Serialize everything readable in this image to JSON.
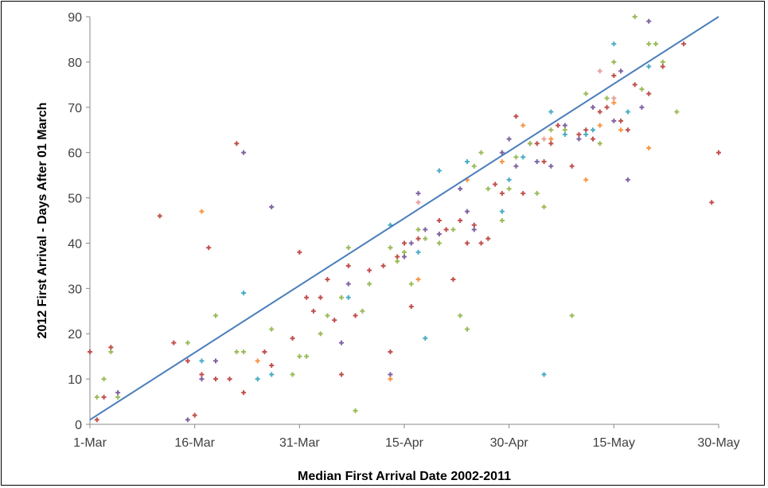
{
  "chart_data": {
    "type": "scatter",
    "title": "",
    "xlabel": "Median First Arrival Date 2002-2011",
    "ylabel": "2012 First Arrival - Days After 01 March",
    "xlim": [
      "2012-03-01",
      "2012-05-30"
    ],
    "ylim": [
      0,
      90
    ],
    "x_ticks": [
      "1-Mar",
      "16-Mar",
      "31-Mar",
      "15-Apr",
      "30-Apr",
      "15-May",
      "30-May"
    ],
    "y_ticks": [
      "0",
      "10",
      "20",
      "30",
      "40",
      "50",
      "60",
      "70",
      "80",
      "90"
    ],
    "grid": false,
    "legend": "none",
    "trendline": {
      "color": "#4a7ebb",
      "from": [
        "2012-03-01",
        1
      ],
      "to": [
        "2012-05-30",
        90
      ]
    },
    "marker_colors": {
      "red": "#c0504d",
      "green": "#9bbb59",
      "purple": "#8064a2",
      "cyan": "#4bacc6",
      "orange": "#f79646",
      "pink": "#e6a0a0"
    },
    "points": [
      [
        "2012-03-01",
        16,
        "red"
      ],
      [
        "2012-03-02",
        1,
        "red"
      ],
      [
        "2012-03-02",
        6,
        "green"
      ],
      [
        "2012-03-03",
        6,
        "red"
      ],
      [
        "2012-03-03",
        10,
        "green"
      ],
      [
        "2012-03-04",
        17,
        "red"
      ],
      [
        "2012-03-04",
        16,
        "green"
      ],
      [
        "2012-03-05",
        7,
        "purple"
      ],
      [
        "2012-03-05",
        6,
        "green"
      ],
      [
        "2012-03-11",
        46,
        "red"
      ],
      [
        "2012-03-13",
        18,
        "red"
      ],
      [
        "2012-03-15",
        18,
        "green"
      ],
      [
        "2012-03-15",
        14,
        "red"
      ],
      [
        "2012-03-15",
        1,
        "purple"
      ],
      [
        "2012-03-16",
        2,
        "red"
      ],
      [
        "2012-03-17",
        14,
        "cyan"
      ],
      [
        "2012-03-17",
        47,
        "orange"
      ],
      [
        "2012-03-17",
        11,
        "red"
      ],
      [
        "2012-03-17",
        10,
        "purple"
      ],
      [
        "2012-03-18",
        39,
        "red"
      ],
      [
        "2012-03-19",
        24,
        "green"
      ],
      [
        "2012-03-19",
        14,
        "purple"
      ],
      [
        "2012-03-19",
        10,
        "red"
      ],
      [
        "2012-03-21",
        10,
        "red"
      ],
      [
        "2012-03-22",
        62,
        "red"
      ],
      [
        "2012-03-22",
        16,
        "green"
      ],
      [
        "2012-03-23",
        60,
        "purple"
      ],
      [
        "2012-03-23",
        29,
        "cyan"
      ],
      [
        "2012-03-23",
        16,
        "green"
      ],
      [
        "2012-03-23",
        7,
        "red"
      ],
      [
        "2012-03-25",
        14,
        "orange"
      ],
      [
        "2012-03-25",
        10,
        "cyan"
      ],
      [
        "2012-03-26",
        16,
        "red"
      ],
      [
        "2012-03-27",
        48,
        "purple"
      ],
      [
        "2012-03-27",
        21,
        "green"
      ],
      [
        "2012-03-27",
        13,
        "red"
      ],
      [
        "2012-03-27",
        11,
        "cyan"
      ],
      [
        "2012-03-30",
        19,
        "red"
      ],
      [
        "2012-03-30",
        11,
        "green"
      ],
      [
        "2012-03-31",
        38,
        "red"
      ],
      [
        "2012-03-31",
        15,
        "green"
      ],
      [
        "2012-04-01",
        28,
        "red"
      ],
      [
        "2012-04-01",
        15,
        "green"
      ],
      [
        "2012-04-02",
        25,
        "red"
      ],
      [
        "2012-04-03",
        28,
        "red"
      ],
      [
        "2012-04-03",
        20,
        "green"
      ],
      [
        "2012-04-04",
        32,
        "red"
      ],
      [
        "2012-04-04",
        24,
        "green"
      ],
      [
        "2012-04-05",
        23,
        "red"
      ],
      [
        "2012-04-06",
        28,
        "green"
      ],
      [
        "2012-04-06",
        18,
        "purple"
      ],
      [
        "2012-04-06",
        11,
        "red"
      ],
      [
        "2012-04-07",
        39,
        "green"
      ],
      [
        "2012-04-07",
        35,
        "red"
      ],
      [
        "2012-04-07",
        31,
        "purple"
      ],
      [
        "2012-04-07",
        28,
        "cyan"
      ],
      [
        "2012-04-08",
        24,
        "red"
      ],
      [
        "2012-04-08",
        3,
        "green"
      ],
      [
        "2012-04-09",
        25,
        "green"
      ],
      [
        "2012-04-10",
        34,
        "red"
      ],
      [
        "2012-04-10",
        31,
        "green"
      ],
      [
        "2012-04-12",
        35,
        "red"
      ],
      [
        "2012-04-13",
        44,
        "cyan"
      ],
      [
        "2012-04-13",
        39,
        "green"
      ],
      [
        "2012-04-13",
        16,
        "red"
      ],
      [
        "2012-04-13",
        11,
        "purple"
      ],
      [
        "2012-04-13",
        10,
        "orange"
      ],
      [
        "2012-04-14",
        37,
        "red"
      ],
      [
        "2012-04-14",
        36,
        "green"
      ],
      [
        "2012-04-15",
        40,
        "red"
      ],
      [
        "2012-04-15",
        37,
        "purple"
      ],
      [
        "2012-04-15",
        38,
        "green"
      ],
      [
        "2012-04-16",
        40,
        "purple"
      ],
      [
        "2012-04-16",
        31,
        "green"
      ],
      [
        "2012-04-16",
        26,
        "red"
      ],
      [
        "2012-04-17",
        51,
        "purple"
      ],
      [
        "2012-04-17",
        49,
        "pink"
      ],
      [
        "2012-04-17",
        43,
        "green"
      ],
      [
        "2012-04-17",
        41,
        "red"
      ],
      [
        "2012-04-17",
        38,
        "cyan"
      ],
      [
        "2012-04-17",
        32,
        "orange"
      ],
      [
        "2012-04-18",
        43,
        "purple"
      ],
      [
        "2012-04-18",
        41,
        "green"
      ],
      [
        "2012-04-18",
        19,
        "cyan"
      ],
      [
        "2012-04-20",
        56,
        "cyan"
      ],
      [
        "2012-04-20",
        45,
        "red"
      ],
      [
        "2012-04-20",
        42,
        "purple"
      ],
      [
        "2012-04-20",
        40,
        "green"
      ],
      [
        "2012-04-21",
        43,
        "red"
      ],
      [
        "2012-04-22",
        43,
        "green"
      ],
      [
        "2012-04-22",
        32,
        "red"
      ],
      [
        "2012-04-23",
        52,
        "purple"
      ],
      [
        "2012-04-23",
        45,
        "red"
      ],
      [
        "2012-04-23",
        24,
        "green"
      ],
      [
        "2012-04-24",
        58,
        "cyan"
      ],
      [
        "2012-04-24",
        54,
        "orange"
      ],
      [
        "2012-04-24",
        47,
        "purple"
      ],
      [
        "2012-04-24",
        40,
        "red"
      ],
      [
        "2012-04-24",
        21,
        "green"
      ],
      [
        "2012-04-25",
        57,
        "green"
      ],
      [
        "2012-04-25",
        44,
        "red"
      ],
      [
        "2012-04-25",
        43,
        "purple"
      ],
      [
        "2012-04-26",
        60,
        "green"
      ],
      [
        "2012-04-26",
        40,
        "red"
      ],
      [
        "2012-04-27",
        52,
        "green"
      ],
      [
        "2012-04-27",
        41,
        "red"
      ],
      [
        "2012-04-28",
        53,
        "red"
      ],
      [
        "2012-04-29",
        60,
        "purple"
      ],
      [
        "2012-04-29",
        58,
        "orange"
      ],
      [
        "2012-04-29",
        51,
        "red"
      ],
      [
        "2012-04-29",
        47,
        "cyan"
      ],
      [
        "2012-04-29",
        45,
        "green"
      ],
      [
        "2012-04-30",
        63,
        "purple"
      ],
      [
        "2012-04-30",
        54,
        "cyan"
      ],
      [
        "2012-04-30",
        52,
        "green"
      ],
      [
        "2012-05-01",
        68,
        "red"
      ],
      [
        "2012-05-01",
        59,
        "green"
      ],
      [
        "2012-05-01",
        57,
        "purple"
      ],
      [
        "2012-05-02",
        66,
        "orange"
      ],
      [
        "2012-05-02",
        59,
        "cyan"
      ],
      [
        "2012-05-02",
        51,
        "red"
      ],
      [
        "2012-05-03",
        62,
        "red"
      ],
      [
        "2012-05-03",
        62,
        "green"
      ],
      [
        "2012-05-04",
        62,
        "red"
      ],
      [
        "2012-05-04",
        58,
        "purple"
      ],
      [
        "2012-05-04",
        51,
        "green"
      ],
      [
        "2012-05-05",
        63,
        "pink"
      ],
      [
        "2012-05-05",
        58,
        "red"
      ],
      [
        "2012-05-05",
        48,
        "green"
      ],
      [
        "2012-05-05",
        11,
        "cyan"
      ],
      [
        "2012-05-06",
        69,
        "cyan"
      ],
      [
        "2012-05-06",
        65,
        "green"
      ],
      [
        "2012-05-06",
        63,
        "orange"
      ],
      [
        "2012-05-06",
        62,
        "red"
      ],
      [
        "2012-05-06",
        57,
        "purple"
      ],
      [
        "2012-05-07",
        66,
        "red"
      ],
      [
        "2012-05-08",
        66,
        "purple"
      ],
      [
        "2012-05-08",
        65,
        "green"
      ],
      [
        "2012-05-08",
        64,
        "cyan"
      ],
      [
        "2012-05-09",
        57,
        "red"
      ],
      [
        "2012-05-09",
        24,
        "green"
      ],
      [
        "2012-05-10",
        64,
        "red"
      ],
      [
        "2012-05-10",
        63,
        "purple"
      ],
      [
        "2012-05-11",
        73,
        "green"
      ],
      [
        "2012-05-11",
        65,
        "red"
      ],
      [
        "2012-05-11",
        64,
        "cyan"
      ],
      [
        "2012-05-11",
        54,
        "orange"
      ],
      [
        "2012-05-12",
        70,
        "purple"
      ],
      [
        "2012-05-12",
        65,
        "cyan"
      ],
      [
        "2012-05-12",
        63,
        "red"
      ],
      [
        "2012-05-13",
        78,
        "pink"
      ],
      [
        "2012-05-13",
        69,
        "red"
      ],
      [
        "2012-05-13",
        66,
        "orange"
      ],
      [
        "2012-05-13",
        62,
        "green"
      ],
      [
        "2012-05-14",
        72,
        "green"
      ],
      [
        "2012-05-14",
        70,
        "red"
      ],
      [
        "2012-05-15",
        84,
        "cyan"
      ],
      [
        "2012-05-15",
        80,
        "green"
      ],
      [
        "2012-05-15",
        77,
        "red"
      ],
      [
        "2012-05-15",
        72,
        "pink"
      ],
      [
        "2012-05-15",
        71,
        "orange"
      ],
      [
        "2012-05-15",
        67,
        "purple"
      ],
      [
        "2012-05-16",
        78,
        "purple"
      ],
      [
        "2012-05-16",
        67,
        "red"
      ],
      [
        "2012-05-16",
        65,
        "orange"
      ],
      [
        "2012-05-17",
        69,
        "cyan"
      ],
      [
        "2012-05-17",
        65,
        "red"
      ],
      [
        "2012-05-17",
        54,
        "purple"
      ],
      [
        "2012-05-18",
        90,
        "green"
      ],
      [
        "2012-05-18",
        75,
        "red"
      ],
      [
        "2012-05-19",
        74,
        "green"
      ],
      [
        "2012-05-19",
        70,
        "purple"
      ],
      [
        "2012-05-20",
        89,
        "purple"
      ],
      [
        "2012-05-20",
        84,
        "green"
      ],
      [
        "2012-05-20",
        79,
        "cyan"
      ],
      [
        "2012-05-20",
        73,
        "red"
      ],
      [
        "2012-05-20",
        61,
        "orange"
      ],
      [
        "2012-05-21",
        84,
        "green"
      ],
      [
        "2012-05-22",
        80,
        "green"
      ],
      [
        "2012-05-22",
        79,
        "red"
      ],
      [
        "2012-05-24",
        69,
        "green"
      ],
      [
        "2012-05-25",
        84,
        "red"
      ],
      [
        "2012-05-29",
        49,
        "red"
      ],
      [
        "2012-05-30",
        60,
        "red"
      ]
    ]
  }
}
